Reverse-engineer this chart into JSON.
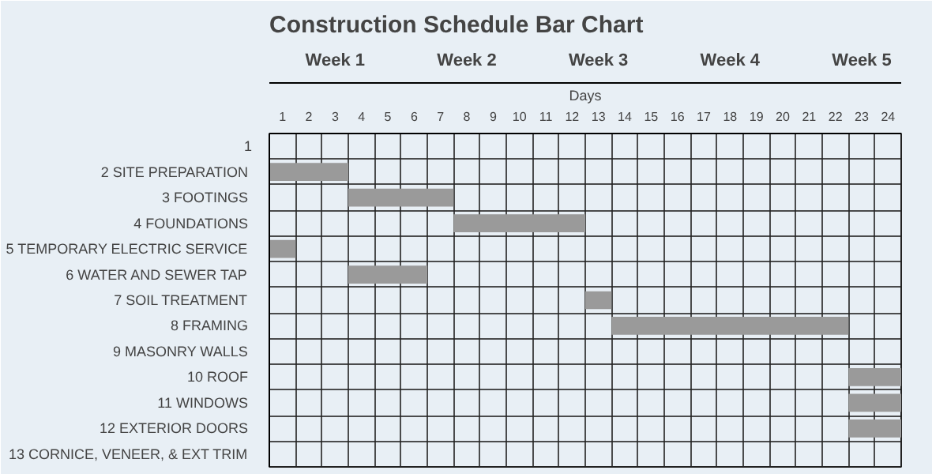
{
  "chart_data": {
    "type": "bar",
    "orientation": "horizontal",
    "title": "Construction Schedule Bar Chart",
    "xlabel": "Days",
    "categories": [
      "1",
      "2  SITE PREPARATION",
      "3  FOOTINGS",
      "4  FOUNDATIONS",
      "5  TEMPORARY ELECTRIC SERVICE",
      "6  WATER AND SEWER TAP",
      "7  SOIL TREATMENT",
      "8  FRAMING",
      "9  MASONRY WALLS",
      "10  ROOF",
      "11  WINDOWS",
      "12  EXTERIOR DOORS",
      "13  CORNICE, VENEER, & EXT TRIM"
    ],
    "base": [
      null,
      0,
      3,
      7,
      0,
      3,
      12,
      13,
      null,
      22,
      22,
      22,
      null
    ],
    "values": [
      null,
      3,
      4,
      5,
      1,
      3,
      1,
      9,
      null,
      2,
      2,
      2,
      null
    ],
    "color": "#9a9a9a",
    "xlim": [
      0,
      24
    ],
    "xticks": [
      {
        "value": 0.5,
        "label": "1"
      },
      {
        "value": 1.5,
        "label": "2"
      },
      {
        "value": 2.5,
        "label": "3"
      },
      {
        "value": 3.5,
        "label": "4"
      },
      {
        "value": 4.5,
        "label": "5"
      },
      {
        "value": 5.5,
        "label": "6"
      },
      {
        "value": 6.5,
        "label": "7"
      },
      {
        "value": 7.5,
        "label": "8"
      },
      {
        "value": 8.5,
        "label": "9"
      },
      {
        "value": 9.5,
        "label": "10"
      },
      {
        "value": 10.5,
        "label": "11"
      },
      {
        "value": 11.5,
        "label": "12"
      },
      {
        "value": 12.5,
        "label": "13"
      },
      {
        "value": 13.5,
        "label": "14"
      },
      {
        "value": 14.5,
        "label": "15"
      },
      {
        "value": 15.5,
        "label": "16"
      },
      {
        "value": 16.5,
        "label": "17"
      },
      {
        "value": 17.5,
        "label": "18"
      },
      {
        "value": 18.5,
        "label": "19"
      },
      {
        "value": 19.5,
        "label": "20"
      },
      {
        "value": 20.5,
        "label": "21"
      },
      {
        "value": 21.5,
        "label": "22"
      },
      {
        "value": 22.5,
        "label": "23"
      },
      {
        "value": 23.5,
        "label": "24"
      }
    ],
    "annotations": [
      "Week 1",
      "Week 2",
      "Week 3",
      "Week 4",
      "Week 5"
    ],
    "grid": true
  }
}
